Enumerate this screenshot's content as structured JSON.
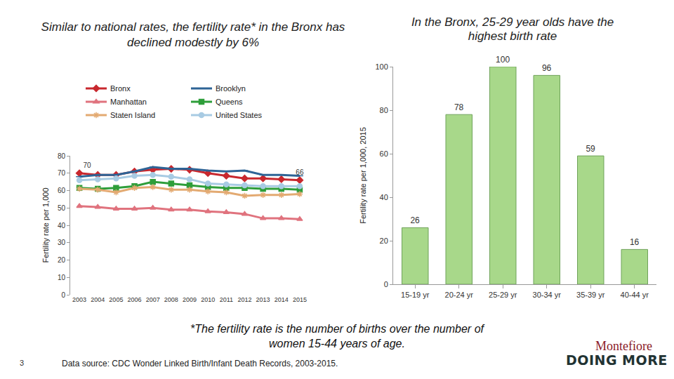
{
  "chart_data": [
    {
      "type": "line",
      "title": "Similar to national rates, the fertility rate* in the Bronx has declined modestly by 6%",
      "y_label": "Fertility rate per 1,000",
      "categories": [
        "2003",
        "2004",
        "2005",
        "2006",
        "2007",
        "2008",
        "2009",
        "2010",
        "2011",
        "2012",
        "2013",
        "2014",
        "2015"
      ],
      "series": [
        {
          "name": "Bronx",
          "color": "#c8282e",
          "marker": "diamond",
          "values": [
            70,
            69,
            69,
            71,
            72,
            72.5,
            72,
            70,
            68.5,
            67,
            67,
            66.5,
            66
          ],
          "value_labels": [
            "70",
            null,
            null,
            null,
            null,
            null,
            null,
            null,
            null,
            null,
            null,
            null,
            "66"
          ]
        },
        {
          "name": "Brooklyn",
          "color": "#2e6496",
          "marker": "line-ew",
          "values": [
            68,
            69,
            69,
            71,
            73.5,
            72.5,
            72.5,
            71.5,
            71,
            71.5,
            69,
            69,
            68.5
          ]
        },
        {
          "name": "Manhattan",
          "color": "#e0737e",
          "marker": "triangle-up",
          "values": [
            51,
            50.5,
            49.5,
            49.5,
            50,
            49,
            49,
            48,
            47.5,
            46.5,
            44,
            44,
            43.5
          ]
        },
        {
          "name": "Queens",
          "color": "#2e9e3a",
          "marker": "square",
          "values": [
            61.5,
            61,
            61.5,
            62.5,
            65,
            64,
            63,
            62,
            61.5,
            61.5,
            61,
            61,
            60.5
          ]
        },
        {
          "name": "Staten Island",
          "color": "#e3aa72",
          "marker": "asterisk-open",
          "values": [
            61,
            60.5,
            59,
            61.5,
            62,
            60.5,
            60.5,
            59.5,
            59,
            57,
            57.5,
            57.5,
            58
          ]
        },
        {
          "name": "United States",
          "color": "#a8cbe3",
          "marker": "circle",
          "values": [
            66,
            66.5,
            67,
            68.5,
            69,
            68,
            66.5,
            64,
            63.5,
            63,
            62.5,
            62.5,
            62.5
          ]
        }
      ],
      "ylim": [
        0,
        80
      ],
      "yticks": [
        0,
        10,
        20,
        30,
        40,
        50,
        60,
        70,
        80
      ],
      "grid": false,
      "legend": "top"
    },
    {
      "type": "bar",
      "title": "In the Bronx, 25-29 year olds have the highest birth rate",
      "y_label": "Fertility rate per 1,000, 2015",
      "categories": [
        "15-19 yr",
        "20-24 yr",
        "25-29 yr",
        "30-34 yr",
        "35-39 yr",
        "40-44 yr"
      ],
      "values": [
        26,
        78,
        100,
        96,
        59,
        16
      ],
      "color": "#a8d88a",
      "ylim": [
        0,
        100
      ],
      "yticks": [
        0,
        20,
        40,
        60,
        80,
        100
      ],
      "grid": false,
      "data_labels": true
    }
  ],
  "footnote": "*The fertility rate is the number of births over the number of women 15-44 years of age.",
  "source": "Data source: CDC Wonder Linked Birth/Infant Death Records, 2003-2015.",
  "page_number": "3",
  "logo": [
    "Montefiore",
    "DOING MORE"
  ]
}
